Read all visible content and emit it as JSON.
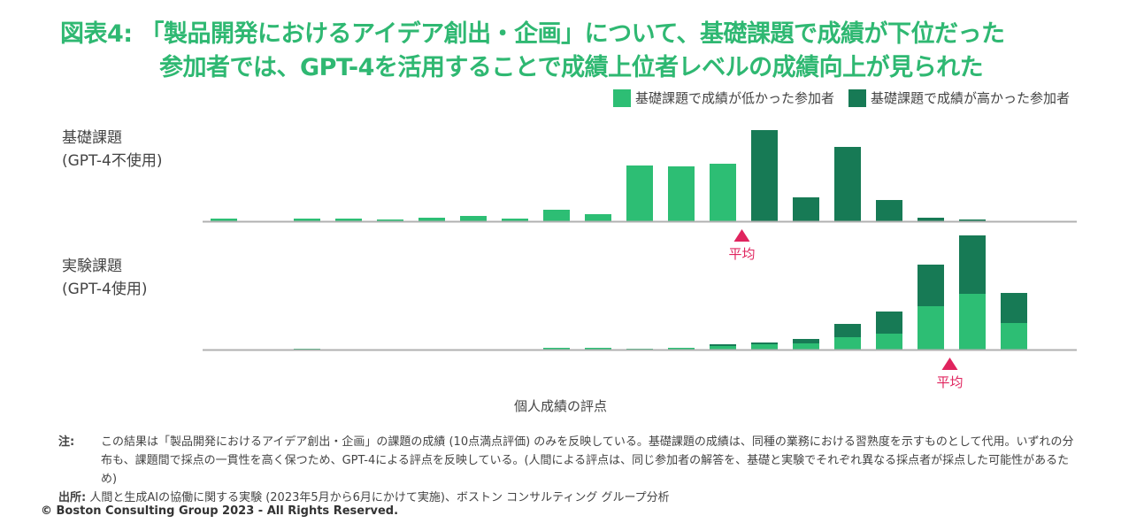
{
  "title": {
    "line1": "図表4: 「製品開発におけるアイデア創出・企画」について、基礎課題で成績が下位だった",
    "line2": "参加者では、GPT-4を活用することで成績上位者レベルの成績向上が見られた"
  },
  "legend": {
    "low": "基礎課題で成績が低かった参加者",
    "high": "基礎課題で成績が高かった参加者"
  },
  "colors": {
    "low": "#2dbe74",
    "high": "#177a55",
    "avg_marker": "#e0245e",
    "axis": "#b0b0b0"
  },
  "rows": {
    "basic": {
      "line1": "基礎課題",
      "line2": "(GPT-4不使用)"
    },
    "experiment": {
      "line1": "実験課題",
      "line2": "(GPT-4使用)"
    }
  },
  "xlabel": "個人成績の評点",
  "avg_label": "平均",
  "note": {
    "label": "注:",
    "text": "この結果は「製品開発におけるアイデア創出・企画」の課題の成績 (10点満点評価) のみを反映している。基礎課題の成績は、同種の業務における習熟度を示すものとして代用。いずれの分布も、課題間で採点の一貫性を高く保つため、GPT-4による評点を反映している。(人間による評点は、同じ参加者の解答を、基礎と実験でそれぞれ異なる採点者が採点した可能性があるため)"
  },
  "source": {
    "label": "出所:",
    "text": "人間と生成AIの協働に関する実験 (2023年5月から6月にかけて実施)、ボストン コンサルティング グループ分析"
  },
  "copyright": "© Boston Consulting Group 2023 - All Rights Reserved.",
  "chart_data": [
    {
      "type": "bar",
      "name": "基礎課題 (GPT-4不使用)",
      "bins": 21,
      "series": [
        {
          "name": "基礎課題で成績が低かった参加者",
          "values": [
            3,
            0,
            3,
            3,
            2,
            4,
            6,
            3,
            13,
            8,
            63,
            62,
            65,
            0,
            0,
            0,
            0,
            0,
            0,
            0,
            0
          ]
        },
        {
          "name": "基礎課題で成績が高かった参加者",
          "values": [
            0,
            0,
            0,
            0,
            0,
            0,
            0,
            0,
            0,
            0,
            0,
            0,
            0,
            103,
            27,
            84,
            24,
            4,
            2,
            0,
            0
          ]
        }
      ],
      "average_bin": 13
    },
    {
      "type": "bar",
      "stacked": true,
      "name": "実験課題 (GPT-4使用)",
      "bins": 21,
      "series": [
        {
          "name": "基礎課題で成績が低かった参加者",
          "values": [
            0,
            0,
            1,
            0,
            0,
            0,
            0,
            0,
            2,
            2,
            1,
            2,
            4,
            6,
            7,
            14,
            18,
            49,
            63,
            30,
            0
          ]
        },
        {
          "name": "基礎課題で成績が高かった参加者",
          "values": [
            0,
            0,
            0,
            0,
            0,
            0,
            0,
            0,
            0,
            0,
            0,
            0,
            2,
            2,
            5,
            15,
            25,
            47,
            66,
            34,
            0
          ]
        }
      ],
      "average_bin": 18
    }
  ]
}
